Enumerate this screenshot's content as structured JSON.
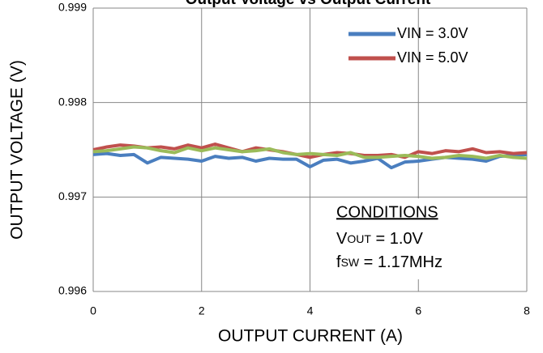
{
  "chart_data": {
    "type": "line",
    "title": "Output Voltage vs Output Current",
    "x_label": "OUTPUT CURRENT (A)",
    "y_label": "OUTPUT VOLTAGE (V)",
    "xlim": [
      0,
      8
    ],
    "xticks": [
      0,
      2,
      4,
      6,
      8
    ],
    "ylim": [
      0.996,
      0.999
    ],
    "yticks": [
      0.996,
      0.997,
      0.998,
      0.999
    ],
    "grid": true,
    "legend": "upper right",
    "x": [
      0,
      0.25,
      0.5,
      0.75,
      1,
      1.25,
      1.5,
      1.75,
      2,
      2.25,
      2.5,
      2.75,
      3,
      3.25,
      3.5,
      3.75,
      4,
      4.25,
      4.5,
      4.75,
      5,
      5.25,
      5.5,
      5.75,
      6,
      6.25,
      6.5,
      6.75,
      7,
      7.25,
      7.5,
      7.75,
      8
    ],
    "series": [
      {
        "name": "VIN = 3.0V",
        "color": "#4a7ebf",
        "values": [
          0.99745,
          0.99746,
          0.99744,
          0.99745,
          0.99736,
          0.99742,
          0.99741,
          0.9974,
          0.99738,
          0.99743,
          0.99741,
          0.99742,
          0.99738,
          0.99741,
          0.9974,
          0.9974,
          0.99732,
          0.99739,
          0.9974,
          0.99736,
          0.99738,
          0.99741,
          0.99731,
          0.99737,
          0.99738,
          0.9974,
          0.99742,
          0.99741,
          0.9974,
          0.99738,
          0.99743,
          0.99744,
          0.99745
        ]
      },
      {
        "name": "VIN = 5.0V",
        "color": "#c0504d",
        "values": [
          0.9975,
          0.99753,
          0.99755,
          0.99754,
          0.99752,
          0.99753,
          0.99751,
          0.99755,
          0.99752,
          0.99756,
          0.99752,
          0.99748,
          0.99752,
          0.9975,
          0.99748,
          0.99745,
          0.99742,
          0.99745,
          0.99747,
          0.99746,
          0.99744,
          0.99744,
          0.99745,
          0.99742,
          0.99748,
          0.99746,
          0.99749,
          0.99748,
          0.99751,
          0.99747,
          0.99748,
          0.99746,
          0.99747
        ]
      },
      {
        "color": "#9bbb59",
        "values": [
          0.99748,
          0.99749,
          0.99751,
          0.99753,
          0.99752,
          0.99749,
          0.99747,
          0.99752,
          0.99749,
          0.99752,
          0.9975,
          0.99748,
          0.99749,
          0.99751,
          0.99747,
          0.99745,
          0.99746,
          0.99745,
          0.99744,
          0.99747,
          0.99742,
          0.99742,
          0.99743,
          0.99744,
          0.99743,
          0.99741,
          0.99742,
          0.99744,
          0.99743,
          0.99741,
          0.99744,
          0.99742,
          0.99741
        ]
      }
    ],
    "annotation": {
      "heading": "CONDITIONS",
      "lines": [
        {
          "main": "V",
          "sub": "OUT",
          "rest": " = 1.0V"
        },
        {
          "main": "f",
          "sub": "SW",
          "rest": " = 1.17MHz"
        }
      ]
    }
  }
}
